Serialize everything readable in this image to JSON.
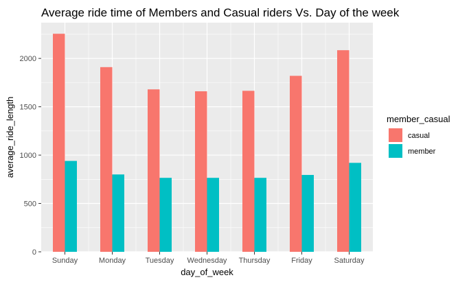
{
  "chart_data": {
    "type": "bar",
    "title": "Average ride time of Members and Casual riders Vs. Day of the week",
    "xlabel": "day_of_week",
    "ylabel": "average_ride_length",
    "categories": [
      "Sunday",
      "Monday",
      "Tuesday",
      "Wednesday",
      "Thursday",
      "Friday",
      "Saturday"
    ],
    "series": [
      {
        "name": "casual",
        "color": "#F8766D",
        "values": [
          2255,
          1910,
          1680,
          1660,
          1665,
          1820,
          2085
        ]
      },
      {
        "name": "member",
        "color": "#00BFC4",
        "values": [
          940,
          800,
          765,
          765,
          765,
          795,
          920
        ]
      }
    ],
    "yticks": [
      0,
      500,
      1000,
      1500,
      2000
    ],
    "ytick_labels": [
      "0",
      "500",
      "1000",
      "1500",
      "2000"
    ],
    "ylim": [
      0,
      2370
    ],
    "grid": true,
    "panel_background": "#EBEBEB",
    "legend": {
      "title": "member_casual",
      "position": "right"
    }
  }
}
